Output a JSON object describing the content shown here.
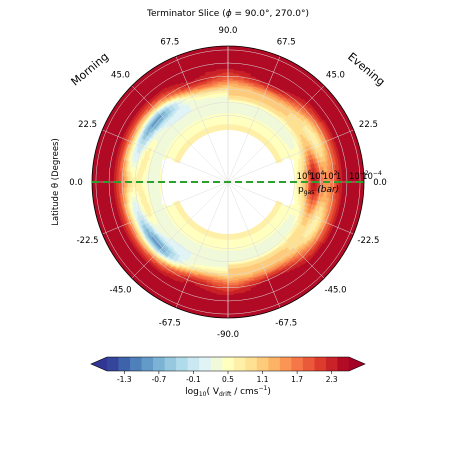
{
  "chart_data": {
    "type": "heatmap",
    "projection": "polar (half-disc per side)",
    "title_prefix": "Terminator Slice (",
    "title_phi": "ϕ",
    "title_suffix": " =  90.0°, 270.0°)",
    "ylabel": "Latitude θ (Degrees)",
    "side_labels": {
      "left": "Morning",
      "right": "Evening"
    },
    "latitude_ticks": [
      {
        "label": "90.0",
        "deg": 90
      },
      {
        "label": "67.5",
        "deg": 67.5
      },
      {
        "label": "45.0",
        "deg": 45
      },
      {
        "label": "22.5",
        "deg": 22.5
      },
      {
        "label": "0.0",
        "deg": 0
      },
      {
        "label": "-22.5",
        "deg": -22.5
      },
      {
        "label": "-45.0",
        "deg": -45
      },
      {
        "label": "-67.5",
        "deg": -67.5
      },
      {
        "label": "-90.0",
        "deg": -90
      }
    ],
    "pressure_axis": {
      "label_main": "p",
      "label_sub": "gas",
      "label_unit": "(bar)",
      "ticks": [
        {
          "base": "10",
          "exp": "6",
          "log_p": 6
        },
        {
          "base": "10",
          "exp": "4",
          "log_p": 4
        },
        {
          "base": "10",
          "exp": "2",
          "log_p": 2
        },
        {
          "base": "1",
          "exp": "",
          "log_p": 0
        },
        {
          "base": "10",
          "exp": "−2",
          "log_p": -2
        },
        {
          "base": "10",
          "exp": "−4",
          "log_p": -4
        }
      ],
      "range_log_p": [
        7.0,
        -4.6
      ]
    },
    "colorbar": {
      "label_pre": "log",
      "label_sub10": "10",
      "label_mid": "( V",
      "label_sub": "drift",
      "label_post": " / cms",
      "label_exp": "−1",
      "label_end": ")",
      "ticks": [
        "-1.3",
        "-0.7",
        "-0.1",
        "0.5",
        "1.1",
        "1.7",
        "2.3"
      ],
      "tick_values": [
        -1.3,
        -0.7,
        -0.1,
        0.5,
        1.1,
        1.7,
        2.3
      ],
      "range": [
        -1.6,
        2.6
      ],
      "extend": "both",
      "cmap": "RdYlBu_r",
      "stops": [
        "#313695",
        "#4575b4",
        "#74add1",
        "#abd9e9",
        "#e0f3f8",
        "#ffffbf",
        "#fee090",
        "#fdae61",
        "#f46d43",
        "#d73027",
        "#a50026"
      ]
    },
    "terminator_line": {
      "latitude": 0.0,
      "color": "#2ca02c",
      "style": "dashed"
    },
    "grid": true,
    "field_description": "log10 drift velocity vs latitude and log pressure on morning and evening terminators"
  }
}
